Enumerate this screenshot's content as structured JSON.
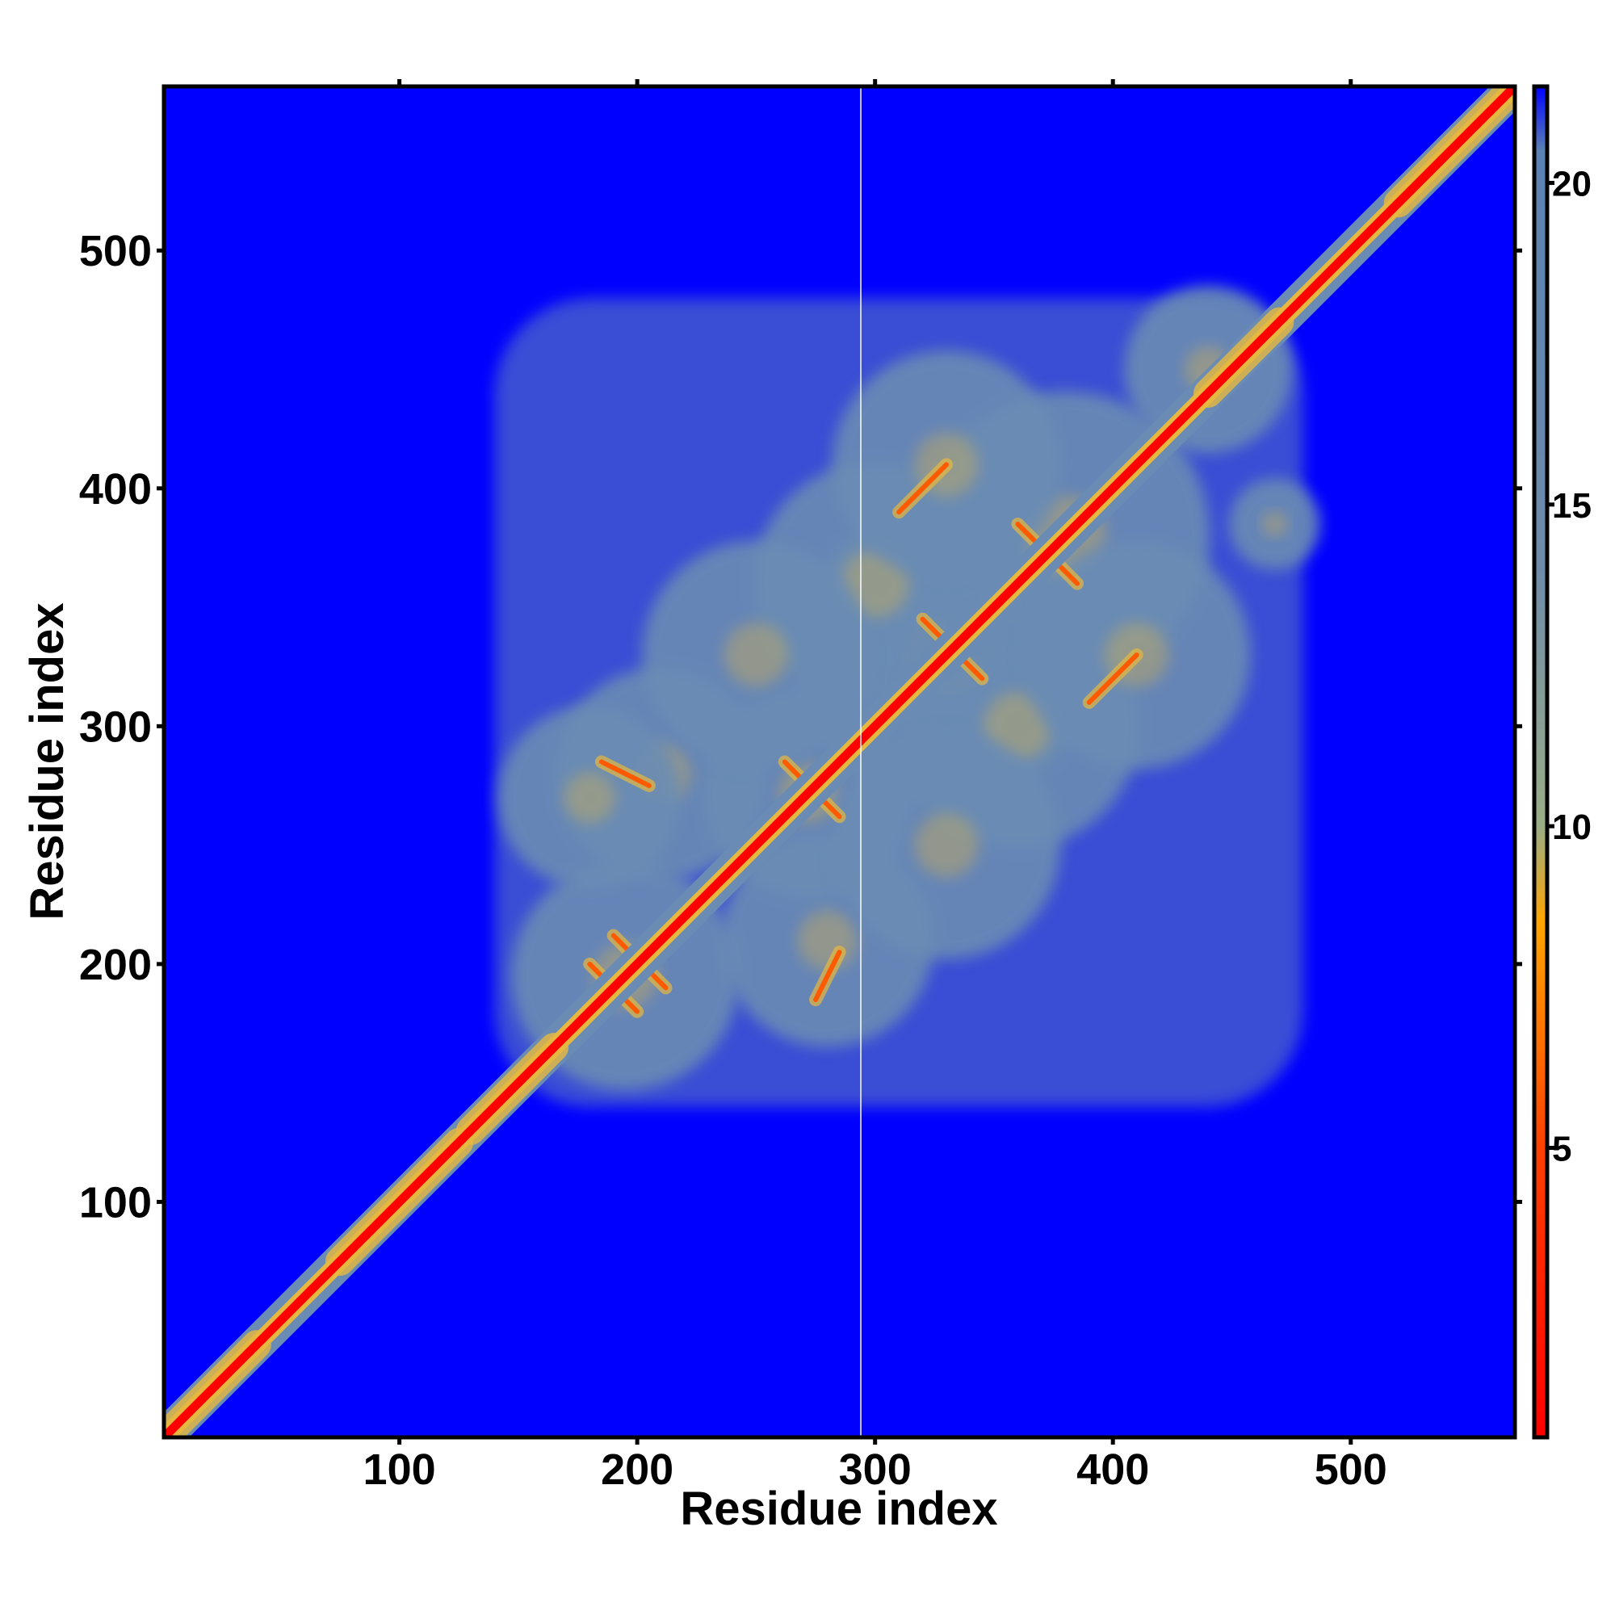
{
  "chart_data": {
    "type": "heatmap",
    "title": "",
    "xlabel": "Residue index",
    "ylabel": "Residue index",
    "xlim": [
      1,
      569
    ],
    "ylim": [
      1,
      569
    ],
    "xticks": [
      100,
      200,
      300,
      400,
      500
    ],
    "yticks": [
      100,
      200,
      300,
      400,
      500
    ],
    "xtick_labels": [
      "100",
      "200",
      "300",
      "400",
      "500"
    ],
    "ytick_labels": [
      "100",
      "200",
      "300",
      "400",
      "500"
    ],
    "colorbar": {
      "range": [
        0.5,
        21.5
      ],
      "ticks": [
        5,
        10,
        15,
        20
      ],
      "tick_labels": [
        "5",
        "10",
        "15",
        "20"
      ],
      "stops": [
        {
          "value": 0.5,
          "color": "#ff0000"
        },
        {
          "value": 5,
          "color": "#ff4000"
        },
        {
          "value": 8.5,
          "color": "#ffa500"
        },
        {
          "value": 10,
          "color": "#9aae86"
        },
        {
          "value": 14,
          "color": "#6e8caa"
        },
        {
          "value": 20.5,
          "color": "#5a82b4"
        },
        {
          "value": 21.5,
          "color": "#0000ff"
        }
      ]
    },
    "background_value": 21,
    "background_color": "#0000ff",
    "diagonal": {
      "from": 1,
      "to": 569,
      "color": "#ff0000"
    },
    "contact_core_color": "#6a8cb4",
    "contact_near_color": "#e6b840",
    "contact_line_color": "#ff5a00",
    "globular_region": {
      "x_range": [
        140,
        480
      ],
      "y_range": [
        140,
        480
      ]
    },
    "contact_clusters": [
      {
        "x": 195,
        "y": 195,
        "spread": 30
      },
      {
        "x": 272,
        "y": 272,
        "spread": 28
      },
      {
        "x": 330,
        "y": 330,
        "spread": 40
      },
      {
        "x": 380,
        "y": 380,
        "spread": 38
      },
      {
        "x": 300,
        "y": 360,
        "spread": 32
      },
      {
        "x": 360,
        "y": 300,
        "spread": 32
      },
      {
        "x": 210,
        "y": 280,
        "spread": 28
      },
      {
        "x": 280,
        "y": 210,
        "spread": 28
      },
      {
        "x": 250,
        "y": 330,
        "spread": 30
      },
      {
        "x": 330,
        "y": 250,
        "spread": 30
      },
      {
        "x": 410,
        "y": 330,
        "spread": 30
      },
      {
        "x": 330,
        "y": 410,
        "spread": 30
      },
      {
        "x": 440,
        "y": 450,
        "spread": 22
      },
      {
        "x": 468,
        "y": 385,
        "spread": 12
      },
      {
        "x": 180,
        "y": 270,
        "spread": 24
      }
    ],
    "helix_segments": [
      [
        5,
        40
      ],
      [
        75,
        125
      ],
      [
        130,
        165
      ],
      [
        440,
        470
      ],
      [
        520,
        569
      ]
    ],
    "sheet_lines": [
      {
        "x1": 180,
        "y1": 200,
        "x2": 200,
        "y2": 180
      },
      {
        "x1": 190,
        "y1": 212,
        "x2": 212,
        "y2": 190
      },
      {
        "x1": 262,
        "y1": 285,
        "x2": 285,
        "y2": 262
      },
      {
        "x1": 320,
        "y1": 345,
        "x2": 345,
        "y2": 320
      },
      {
        "x1": 360,
        "y1": 385,
        "x2": 385,
        "y2": 360
      },
      {
        "x1": 275,
        "y1": 185,
        "x2": 285,
        "y2": 205
      },
      {
        "x1": 205,
        "y1": 275,
        "x2": 185,
        "y2": 285
      },
      {
        "x1": 310,
        "y1": 390,
        "x2": 330,
        "y2": 410
      },
      {
        "x1": 390,
        "y1": 310,
        "x2": 410,
        "y2": 330
      }
    ],
    "missing_residue": 294
  }
}
